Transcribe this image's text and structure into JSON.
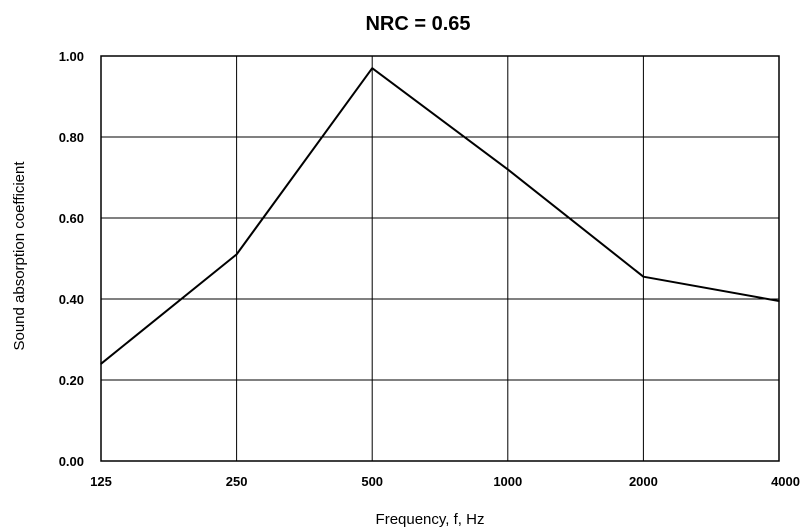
{
  "chart_data": {
    "type": "line",
    "title": "NRC = 0.65",
    "xlabel": "Frequency, f, Hz",
    "ylabel": "Sound absorption coefficient",
    "x_scale": "log",
    "categories": [
      "125",
      "250",
      "500",
      "1000",
      "2000",
      "4000"
    ],
    "x": [
      125,
      250,
      500,
      1000,
      2000,
      4000
    ],
    "series": [
      {
        "values": [
          0.24,
          0.51,
          0.97,
          0.72,
          0.455,
          0.395
        ]
      }
    ],
    "ylim": [
      0,
      1.0
    ],
    "yticks": [
      "0.00",
      "0.20",
      "0.40",
      "0.60",
      "0.80",
      "1.00"
    ],
    "grid": true,
    "legend": "none",
    "line_color": "#000000",
    "grid_color": "#000000"
  }
}
